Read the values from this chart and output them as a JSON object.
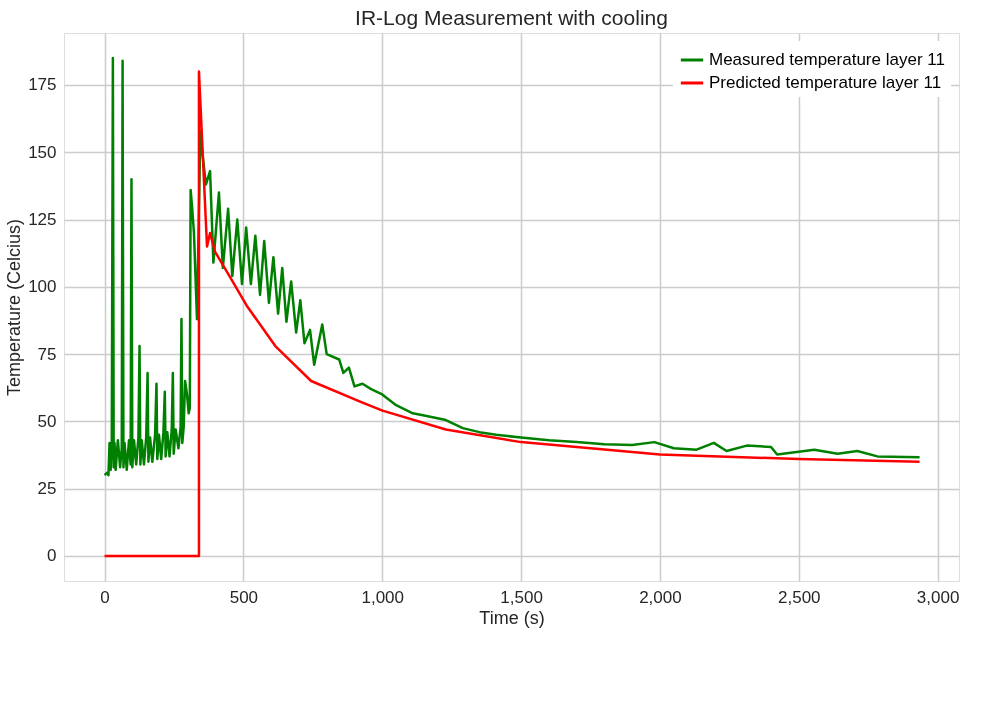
{
  "chart_data": {
    "type": "line",
    "title": "IR-Log Measurement with cooling",
    "xlabel": "Time (s)",
    "ylabel": "Temperature (Celcius)",
    "xlim": [
      -146,
      3077
    ],
    "ylim": [
      -9.3,
      194.3
    ],
    "xticks": [
      0,
      500,
      {
        "value": 1000,
        "label": "1,000"
      },
      {
        "value": 1500,
        "label": "1,500"
      },
      {
        "value": 2000,
        "label": "2,000"
      },
      {
        "value": 2500,
        "label": "2,500"
      },
      {
        "value": 3000,
        "label": "3,000"
      }
    ],
    "yticks": [
      0,
      25,
      50,
      75,
      100,
      125,
      150,
      175
    ],
    "grid": true,
    "legend": "top right",
    "marker": "none",
    "line_style": "solid",
    "series": [
      {
        "name": "Measured temperature layer 11",
        "color": "#008000",
        "x": [
          0,
          10,
          14,
          18,
          22,
          26,
          30,
          33,
          36,
          40,
          48,
          56,
          62,
          65,
          68,
          72,
          80,
          88,
          94,
          97,
          100,
          106,
          114,
          122,
          126,
          129,
          134,
          142,
          150,
          155,
          158,
          164,
          172,
          182,
          187,
          190,
          196,
          204,
          212,
          217,
          220,
          226,
          234,
          242,
          246,
          249,
          256,
          266,
          274,
          277,
          280,
          285,
          290,
          297,
          303,
          307,
          310,
          315,
          322,
          333,
          345,
          352,
          365,
          380,
          392,
          412,
          426,
          445,
          460,
          478,
          495,
          510,
          527,
          543,
          560,
          575,
          592,
          608,
          625,
          640,
          655,
          672,
          690,
          705,
          720,
          740,
          755,
          784,
          800,
          845,
          860,
          880,
          900,
          929,
          960,
          1000,
          1050,
          1110,
          1160,
          1229,
          1290,
          1350,
          1410,
          1500,
          1600,
          1700,
          1800,
          1900,
          1980,
          2050,
          2132,
          2194,
          2240,
          2313,
          2400,
          2422,
          2556,
          2640,
          2711,
          2783,
          2935
        ],
        "values": [
          30,
          31,
          30,
          42,
          32,
          41,
          185,
          33,
          42,
          32,
          43,
          33,
          40,
          184,
          33,
          42,
          32,
          43,
          34,
          140,
          33,
          43,
          34,
          44,
          78,
          34,
          43,
          34,
          44,
          68,
          35,
          44,
          35,
          45,
          64,
          36,
          45,
          36,
          46,
          61,
          37,
          46,
          37,
          47,
          68,
          38,
          47,
          40,
          48,
          88,
          42,
          48,
          65,
          60,
          53,
          55,
          136,
          130,
          120,
          88,
          158,
          150,
          138,
          143,
          109,
          135,
          107,
          129,
          104,
          125,
          101,
          122,
          101,
          119,
          97,
          117,
          94,
          111,
          90,
          107,
          87,
          102,
          83,
          95,
          79,
          84,
          71,
          86,
          75,
          73,
          68,
          70,
          63,
          64,
          62,
          60,
          56,
          53,
          52,
          50.5,
          47.5,
          46,
          45,
          44,
          43,
          42.3,
          41.5,
          41.2,
          42.3,
          40,
          39.5,
          42,
          39,
          41,
          40.5,
          37.7,
          39.5,
          38,
          39,
          37,
          36.7
        ]
      },
      {
        "name": "Predicted temperature layer 11",
        "color": "#ff0000",
        "x": [
          0,
          340,
          340,
          369,
          380,
          398,
          450,
          512,
          615,
          744,
          929,
          1001,
          1229,
          1500,
          2000,
          2500,
          2935
        ],
        "values": [
          0,
          0,
          180,
          115,
          120,
          113,
          104,
          93,
          78,
          65,
          57,
          54,
          47,
          42.3,
          37.7,
          36,
          35
        ]
      }
    ]
  }
}
